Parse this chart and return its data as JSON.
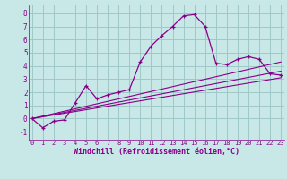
{
  "bg_color": "#c8e8e8",
  "grid_color": "#a0c8c8",
  "line_color": "#880088",
  "xlabel": "Windchill (Refroidissement éolien,°C)",
  "yticks": [
    -1,
    0,
    1,
    2,
    3,
    4,
    5,
    6,
    7,
    8
  ],
  "xticks": [
    0,
    1,
    2,
    3,
    4,
    5,
    6,
    7,
    8,
    9,
    10,
    11,
    12,
    13,
    14,
    15,
    16,
    17,
    18,
    19,
    20,
    21,
    22,
    23
  ],
  "xlim": [
    -0.3,
    23.3
  ],
  "ylim": [
    -1.6,
    8.6
  ],
  "main_x": [
    0,
    1,
    2,
    3,
    4,
    5,
    6,
    7,
    8,
    9,
    10,
    11,
    12,
    13,
    14,
    15,
    16,
    17,
    18,
    19,
    20,
    21,
    22,
    23
  ],
  "main_y": [
    0.0,
    -0.7,
    -0.2,
    -0.1,
    1.2,
    2.5,
    1.5,
    1.8,
    2.0,
    2.2,
    4.3,
    5.5,
    6.3,
    7.0,
    7.8,
    7.9,
    7.0,
    4.2,
    4.1,
    4.5,
    4.7,
    4.5,
    3.4,
    3.3
  ],
  "line2_x": [
    0,
    23
  ],
  "line2_y": [
    0.0,
    4.3
  ],
  "line3_x": [
    0,
    23
  ],
  "line3_y": [
    0.0,
    3.6
  ],
  "line4_x": [
    0,
    23
  ],
  "line4_y": [
    0.0,
    3.1
  ]
}
